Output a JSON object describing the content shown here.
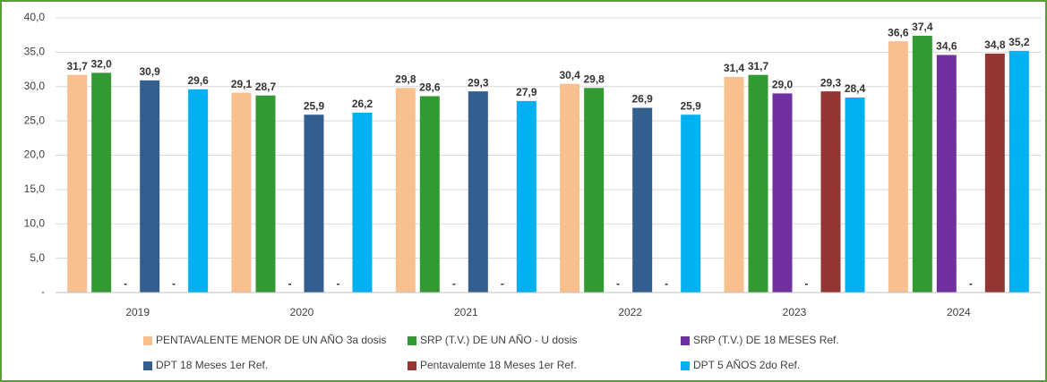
{
  "chart_data": {
    "type": "bar",
    "categories": [
      "2019",
      "2020",
      "2021",
      "2022",
      "2023",
      "2024"
    ],
    "series": [
      {
        "name": "PENTAVALENTE MENOR DE UN AÑO 3a dosis",
        "color": "#f8c08f",
        "values": [
          31.7,
          29.1,
          29.8,
          30.4,
          31.4,
          36.6
        ],
        "value_labels": [
          "31,7",
          "29,1",
          "29,8",
          "30,4",
          "31,4",
          "36,6"
        ]
      },
      {
        "name": "SRP (T.V.) DE UN AÑO - U dosis",
        "color": "#339933",
        "values": [
          32.0,
          28.7,
          28.6,
          29.8,
          31.7,
          37.4
        ],
        "value_labels": [
          "32,0",
          "28,7",
          "28,6",
          "29,8",
          "31,7",
          "37,4"
        ]
      },
      {
        "name": "SRP (T.V.) DE 18 MESES Ref.",
        "color": "#7030a0",
        "values": [
          0,
          0,
          0,
          0,
          29.0,
          34.6
        ],
        "value_labels": [
          "-",
          "-",
          "-",
          "-",
          "29,0",
          "34,6"
        ]
      },
      {
        "name": "DPT 18 Meses 1er Ref.",
        "color": "#335e8e",
        "values": [
          30.9,
          25.9,
          29.3,
          26.9,
          0,
          0
        ],
        "value_labels": [
          "30,9",
          "25,9",
          "29,3",
          "26,9",
          "-",
          "-"
        ]
      },
      {
        "name": "Pentavalemte 18 Meses 1er Ref.",
        "color": "#943634",
        "values": [
          0,
          0,
          0,
          0,
          29.3,
          34.8
        ],
        "value_labels": [
          "-",
          "-",
          "-",
          "-",
          "29,3",
          "34,8"
        ]
      },
      {
        "name": "DPT 5 AÑOS 2do Ref.",
        "color": "#00b0f0",
        "values": [
          29.6,
          26.2,
          27.9,
          25.9,
          28.4,
          35.2
        ],
        "value_labels": [
          "29,6",
          "26,2",
          "27,9",
          "25,9",
          "28,4",
          "35,2"
        ]
      }
    ],
    "ylim": [
      0,
      40
    ],
    "yticks": [
      {
        "value": 0,
        "label": "-"
      },
      {
        "value": 5,
        "label": "5,0"
      },
      {
        "value": 10,
        "label": "10,0"
      },
      {
        "value": 15,
        "label": "15,0"
      },
      {
        "value": 20,
        "label": "20,0"
      },
      {
        "value": 25,
        "label": "25,0"
      },
      {
        "value": 30,
        "label": "30,0"
      },
      {
        "value": 35,
        "label": "35,0"
      },
      {
        "value": 40,
        "label": "40,0"
      }
    ],
    "grid": true
  }
}
